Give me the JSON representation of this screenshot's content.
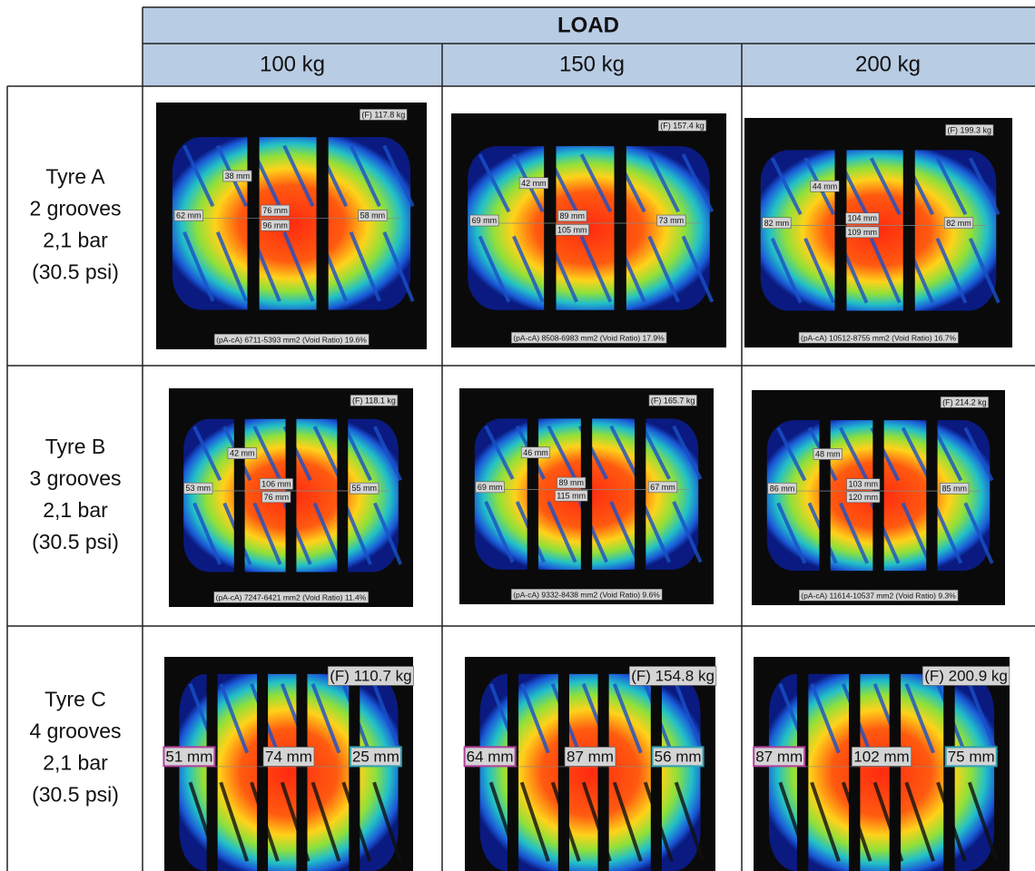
{
  "table": {
    "title": "LOAD",
    "columns": [
      "100 kg",
      "150 kg",
      "200 kg"
    ],
    "rows": [
      {
        "label": [
          "Tyre A",
          "2 grooves",
          "2,1 bar",
          "(30.5 psi)"
        ],
        "cells": [
          {
            "force": "(F) 117.8 kg",
            "labels": [
              "38 mm",
              "62 mm",
              "76 mm",
              "96 mm",
              "58 mm"
            ],
            "footer": "(pA-cA) 6711-5393 mm2 (Void Ratio) 19.6%"
          },
          {
            "force": "(F) 157.4 kg",
            "labels": [
              "42 mm",
              "69 mm",
              "89 mm",
              "105 mm",
              "73 mm"
            ],
            "footer": "(pA-cA) 8508-6983 mm2 (Void Ratio) 17.9%"
          },
          {
            "force": "(F) 199.3 kg",
            "labels": [
              "44 mm",
              "82 mm",
              "104 mm",
              "109 mm",
              "82 mm"
            ],
            "footer": "(pA-cA) 10512-8755 mm2 (Void Ratio) 16.7%"
          }
        ]
      },
      {
        "label": [
          "Tyre B",
          "3 grooves",
          "2,1 bar",
          "(30.5 psi)"
        ],
        "cells": [
          {
            "force": "(F) 118.1 kg",
            "labels": [
              "42 mm",
              "53 mm",
              "106 mm",
              "76 mm",
              "55 mm"
            ],
            "footer": "(pA-cA) 7247-6421 mm2 (Void Ratio) 11.4%"
          },
          {
            "force": "(F) 165.7 kg",
            "labels": [
              "46 mm",
              "69 mm",
              "89 mm",
              "115 mm",
              "67 mm"
            ],
            "footer": "(pA-cA) 9332-8438 mm2 (Void Ratio) 9.6%"
          },
          {
            "force": "(F) 214.2 kg",
            "labels": [
              "48 mm",
              "86 mm",
              "103 mm",
              "120 mm",
              "85 mm"
            ],
            "footer": "(pA-cA) 11614-10537 mm2 (Void Ratio) 9.3%"
          }
        ]
      },
      {
        "label": [
          "Tyre C",
          "4 grooves",
          "2,1 bar",
          "(30.5 psi)"
        ],
        "cells": [
          {
            "force": "(F) 110.7 kg",
            "labels": [
              "51 mm",
              "74 mm",
              "25 mm"
            ]
          },
          {
            "force": "(F) 154.8 kg",
            "labels": [
              "64 mm",
              "87 mm",
              "56 mm"
            ]
          },
          {
            "force": "(F) 200.9 kg",
            "labels": [
              "87 mm",
              "102 mm",
              "75 mm"
            ]
          }
        ]
      }
    ]
  }
}
